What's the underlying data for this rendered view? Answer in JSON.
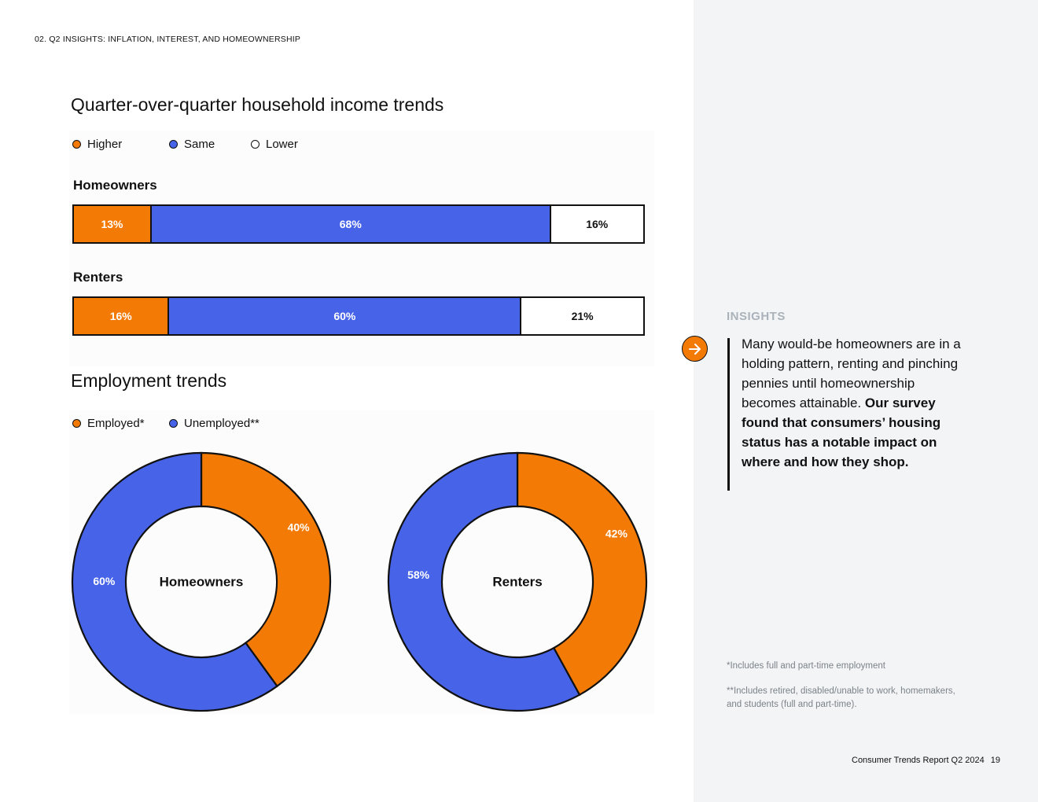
{
  "section_header": "02. Q2 INSIGHTS: INFLATION, INTEREST, AND HOMEOWNERSHIP",
  "colors": {
    "orange": "#f27a05",
    "blue": "#4763e8",
    "white": "#ffffff",
    "outline": "#111111",
    "sidebar": "#f3f4f6"
  },
  "income_chart": {
    "title": "Quarter-over-quarter household income trends",
    "legend": [
      "Higher",
      "Same",
      "Lower"
    ]
  },
  "employment_chart": {
    "title": "Employment trends",
    "legend": [
      "Employed*",
      "Unemployed**"
    ]
  },
  "chart_data": [
    {
      "type": "bar",
      "orientation": "horizontal-stacked-100",
      "title": "Quarter-over-quarter household income trends",
      "categories": [
        "Homeowners",
        "Renters"
      ],
      "series": [
        {
          "name": "Higher",
          "values": [
            13,
            16
          ],
          "labels": [
            "13%",
            "16%"
          ],
          "color": "#f27a05"
        },
        {
          "name": "Same",
          "values": [
            68,
            60
          ],
          "labels": [
            "68%",
            "60%"
          ],
          "color": "#4763e8"
        },
        {
          "name": "Lower",
          "values": [
            16,
            21
          ],
          "labels": [
            "16%",
            "21%"
          ],
          "color": "#ffffff"
        }
      ],
      "legend": "top-left"
    },
    {
      "type": "pie",
      "style": "donut",
      "title": "Employment trends",
      "charts": [
        {
          "name": "Homeowners",
          "slices": [
            {
              "name": "Employed*",
              "value": 40,
              "label": "40%"
            },
            {
              "name": "Unemployed**",
              "value": 60,
              "label": "60%"
            }
          ]
        },
        {
          "name": "Renters",
          "slices": [
            {
              "name": "Employed*",
              "value": 42,
              "label": "42%"
            },
            {
              "name": "Unemployed**",
              "value": 58,
              "label": "58%"
            }
          ]
        }
      ],
      "legend": "top-left"
    }
  ],
  "sidebar": {
    "insights_heading": "INSIGHTS",
    "insight_text": "Many would-be homeowners are in a holding pattern, renting and pinching pennies until homeownership becomes attainable.",
    "insight_bold": "Our survey found that consumers’ housing status has a notable impact on where and how they shop.",
    "footnote_1": "*Includes full and part-time employment",
    "footnote_2": "**Includes retired, disabled/unable to work, homemakers, and students (full and part-time)."
  },
  "footer": {
    "report": "Consumer Trends Report Q2 2024",
    "page": "19"
  }
}
